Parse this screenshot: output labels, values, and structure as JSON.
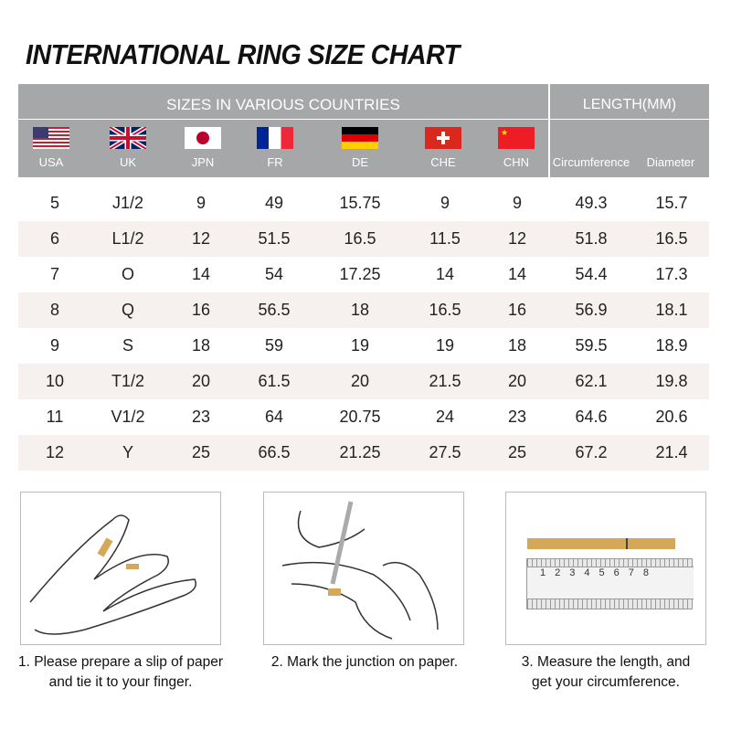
{
  "title": "INTERNATIONAL RING SIZE CHART",
  "header": {
    "sizes_label": "SIZES IN VARIOUS COUNTRIES",
    "length_label": "LENGTH(MM)",
    "columns": [
      "USA",
      "UK",
      "JPN",
      "FR",
      "DE",
      "CHE",
      "CHN",
      "Circumference",
      "Diameter"
    ]
  },
  "rows": [
    [
      "5",
      "J1/2",
      "9",
      "49",
      "15.75",
      "9",
      "9",
      "49.3",
      "15.7"
    ],
    [
      "6",
      "L1/2",
      "12",
      "51.5",
      "16.5",
      "11.5",
      "12",
      "51.8",
      "16.5"
    ],
    [
      "7",
      "O",
      "14",
      "54",
      "17.25",
      "14",
      "14",
      "54.4",
      "17.3"
    ],
    [
      "8",
      "Q",
      "16",
      "56.5",
      "18",
      "16.5",
      "16",
      "56.9",
      "18.1"
    ],
    [
      "9",
      "S",
      "18",
      "59",
      "19",
      "19",
      "18",
      "59.5",
      "18.9"
    ],
    [
      "10",
      "T1/2",
      "20",
      "61.5",
      "20",
      "21.5",
      "20",
      "62.1",
      "19.8"
    ],
    [
      "11",
      "V1/2",
      "23",
      "64",
      "20.75",
      "24",
      "23",
      "64.6",
      "20.6"
    ],
    [
      "12",
      "Y",
      "25",
      "66.5",
      "21.25",
      "27.5",
      "25",
      "67.2",
      "21.4"
    ]
  ],
  "steps": [
    {
      "line1": "1. Please prepare a slip of paper",
      "line2": "and tie it to your finger."
    },
    {
      "line1": "2. Mark the junction on paper.",
      "line2": ""
    },
    {
      "line1": "3. Measure the length, and",
      "line2": "get your circumference."
    }
  ],
  "colors": {
    "header_bg": "#a6a7a9",
    "row_alt": "#f6f1ee",
    "paper": "#d4a759"
  }
}
